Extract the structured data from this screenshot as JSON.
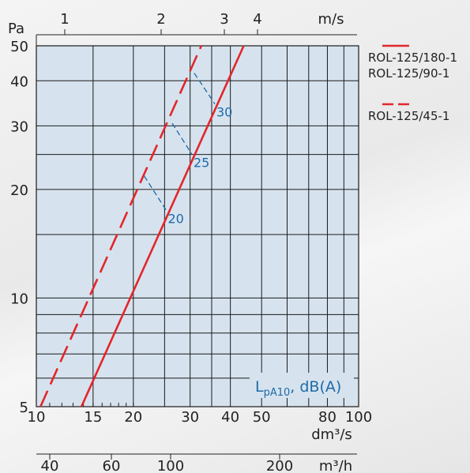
{
  "chart_data": {
    "type": "line",
    "x_axis": {
      "label": "dm³/s",
      "scale": "log",
      "range": [
        10,
        100
      ],
      "tick_labels": [
        "10",
        "15",
        "20",
        "30",
        "40",
        "50",
        "80",
        "100"
      ]
    },
    "y_axis": {
      "label": "Pa",
      "scale": "log",
      "range": [
        5,
        50
      ],
      "tick_labels": [
        "5",
        "10",
        "20",
        "30",
        "40",
        "50"
      ]
    },
    "top_axis": {
      "label": "m/s",
      "tick_labels": [
        "1",
        "2",
        "3",
        "4"
      ]
    },
    "bottom_axis2": {
      "label": "m³/h",
      "tick_labels": [
        "40",
        "60",
        "100",
        "200"
      ]
    },
    "series": [
      {
        "name": "ROL-125/180-1 ROL-125/90-1",
        "legend_lines": [
          "ROL-125/180-1",
          "ROL-125/90-1"
        ],
        "style": "solid",
        "color": "#e3262b",
        "x": [
          13.8,
          44
        ],
        "y": [
          5,
          50
        ]
      },
      {
        "name": "ROL-125/45-1",
        "legend_lines": [
          "ROL-125/45-1"
        ],
        "style": "dashed",
        "color": "#e3262b",
        "x": [
          10.3,
          32.5
        ],
        "y": [
          5,
          50
        ]
      }
    ],
    "sound_level_label": "L_pA10, dB(A)",
    "sound_level_lines": [
      {
        "label": "20",
        "x": [
          21.6,
          25.3
        ],
        "y": [
          21.8,
          17.5
        ]
      },
      {
        "label": "25",
        "x": [
          26.4,
          30.4
        ],
        "y": [
          30.5,
          25.0
        ]
      },
      {
        "label": "30",
        "x": [
          30.9,
          35.8
        ],
        "y": [
          42.0,
          34.5
        ]
      }
    ],
    "grid": true,
    "legend_position": "right"
  },
  "colors": {
    "plot_bg": "#d6e3ee",
    "grid": "#1a1a1a",
    "series": "#e3262b",
    "sound": "#1e6aa8"
  }
}
